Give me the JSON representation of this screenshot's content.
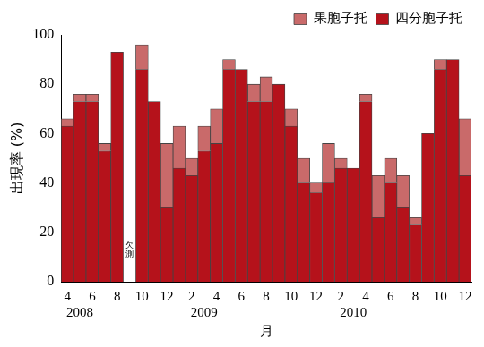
{
  "chart_data": {
    "type": "bar",
    "stacked": true,
    "x_label": "月",
    "y_label": "出現率 (%)",
    "categories": [
      "4",
      null,
      "6",
      null,
      "8",
      null,
      "10",
      null,
      "12",
      null,
      "2",
      null,
      "4",
      null,
      "6",
      null,
      "8",
      null,
      "10",
      null,
      "12",
      null,
      "2",
      null,
      "4",
      null,
      "6",
      null,
      "8",
      null,
      "10",
      null,
      "12"
    ],
    "year_labels": [
      null,
      "2008",
      null,
      null,
      null,
      null,
      null,
      null,
      null,
      null,
      null,
      "2009",
      null,
      null,
      null,
      null,
      null,
      null,
      null,
      null,
      null,
      null,
      null,
      "2010",
      null,
      null,
      null,
      null,
      null,
      null,
      null,
      null,
      null
    ],
    "series": [
      {
        "name": "四分胞子托",
        "color": "#b5121b",
        "values": [
          63,
          73,
          73,
          53,
          93,
          null,
          86,
          73,
          30,
          46,
          43,
          53,
          56,
          86,
          86,
          73,
          73,
          80,
          63,
          40,
          36,
          40,
          46,
          46,
          73,
          26,
          40,
          30,
          23,
          60,
          86,
          90,
          43
        ]
      },
      {
        "name": "果胞子托",
        "color": "#c96a6a",
        "values": [
          3,
          3,
          3,
          3,
          0,
          null,
          10,
          0,
          26,
          17,
          7,
          10,
          14,
          4,
          0,
          7,
          10,
          0,
          7,
          10,
          4,
          16,
          4,
          0,
          3,
          17,
          10,
          13,
          3,
          0,
          4,
          0,
          23
        ]
      }
    ],
    "ylim": [
      0,
      100
    ],
    "yticks": [
      0,
      20,
      40,
      60,
      80,
      100
    ],
    "grid": false,
    "legend": "top right",
    "annotations": [
      {
        "text": "欠測",
        "index": 5
      }
    ]
  }
}
